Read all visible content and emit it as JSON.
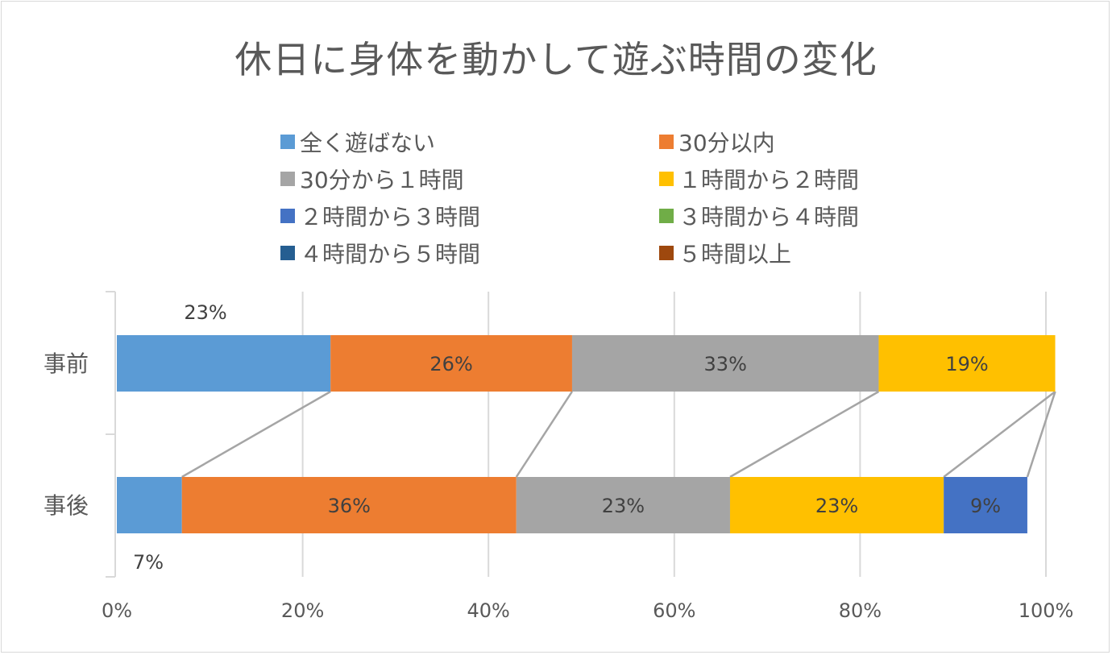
{
  "chart_data": {
    "type": "bar",
    "orientation": "horizontal",
    "stacked": "percent",
    "title": "休日に身体を動かして遊ぶ時間の変化",
    "categories": [
      "事前",
      "事後"
    ],
    "series": [
      {
        "name": "全く遊ばない",
        "color": "#5b9bd5",
        "values": [
          23,
          7
        ]
      },
      {
        "name": "30分以内",
        "color": "#ed7d31",
        "values": [
          26,
          36
        ]
      },
      {
        "name": "30分から１時間",
        "color": "#a5a5a5",
        "values": [
          33,
          23
        ]
      },
      {
        "name": "１時間から２時間",
        "color": "#ffc000",
        "values": [
          19,
          23
        ]
      },
      {
        "name": "２時間から３時間",
        "color": "#4472c4",
        "values": [
          0,
          9
        ]
      },
      {
        "name": "３時間から４時間",
        "color": "#70ad47",
        "values": [
          0,
          0
        ]
      },
      {
        "name": "４時間から５時間",
        "color": "#255e91",
        "values": [
          0,
          0
        ]
      },
      {
        "name": "５時間以上",
        "color": "#9e480e",
        "values": [
          0,
          0
        ]
      }
    ],
    "data_labels": [
      [
        "23%",
        "26%",
        "33%",
        "19%",
        "",
        "",
        "",
        ""
      ],
      [
        "7%",
        "36%",
        "23%",
        "23%",
        "9%",
        "",
        "",
        ""
      ]
    ],
    "x_ticks": [
      "0%",
      "20%",
      "40%",
      "60%",
      "80%",
      "100%"
    ],
    "xlim": [
      0,
      100
    ],
    "grid": true,
    "legend_position": "top",
    "series_lines": true
  }
}
